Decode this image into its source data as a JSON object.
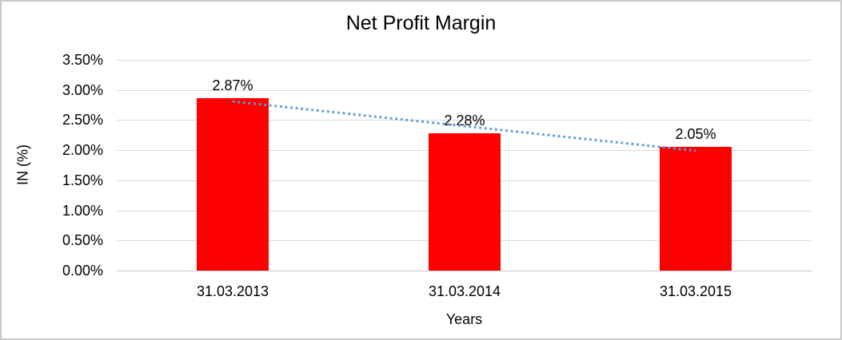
{
  "chart_data": {
    "type": "bar",
    "title": "Net Profit Margin",
    "xlabel": "Years",
    "ylabel": "IN (%)",
    "categories": [
      "31.03.2013",
      "31.03.2014",
      "31.03.2015"
    ],
    "values": [
      2.87,
      2.28,
      2.05
    ],
    "data_labels": [
      "2.87%",
      "2.28%",
      "2.05%"
    ],
    "y_tick_labels": [
      "0.00%",
      "0.50%",
      "1.00%",
      "1.50%",
      "2.00%",
      "2.50%",
      "3.00%",
      "3.50%"
    ],
    "ylim": [
      0,
      3.5
    ],
    "grid": true,
    "legend_position": "none",
    "bar_color": "#ff0000",
    "gridline_color": "#d9d9d9",
    "axis_line_color": "#c6c6c6",
    "text_color": "#000000",
    "frame_color": "#c9c9c9",
    "trendline": {
      "type": "linear",
      "style": "dotted",
      "color": "#5b9bd5"
    }
  }
}
